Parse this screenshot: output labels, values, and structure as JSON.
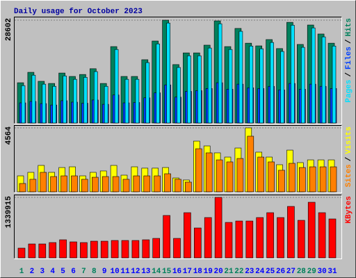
{
  "chart_data": [
    {
      "type": "bar",
      "title": "Daily usage for October 2023",
      "legend_separator": "/",
      "series": [
        {
          "name": "Pages",
          "color": "#00e0ff",
          "values": [
            10400,
            13300,
            10800,
            10200,
            13100,
            12150,
            12700,
            14300,
            10200,
            20450,
            12150,
            12150,
            16800,
            22000,
            27800,
            15450,
            18700,
            18700,
            20850,
            27600,
            20450,
            25500,
            21400,
            20650,
            22400,
            19900,
            27200,
            21050,
            26450,
            23950,
            21400
          ]
        },
        {
          "name": "Files",
          "color": "#0040ff",
          "values": [
            5600,
            6000,
            5400,
            5000,
            6200,
            5800,
            5500,
            6400,
            5200,
            7800,
            5600,
            5700,
            7000,
            8400,
            10600,
            7200,
            8800,
            9000,
            9600,
            11200,
            9400,
            10800,
            9800,
            9600,
            10200,
            9200,
            11000,
            9400,
            10800,
            10200,
            9600
          ]
        },
        {
          "name": "Hits",
          "color": "#00805c",
          "values": [
            11200,
            14100,
            11600,
            11000,
            13900,
            12950,
            13500,
            15100,
            11000,
            21250,
            12950,
            12950,
            17600,
            22800,
            28602,
            16250,
            19500,
            19500,
            21650,
            28400,
            21250,
            26300,
            22200,
            21450,
            23200,
            20700,
            28000,
            21850,
            27250,
            24750,
            22200
          ]
        }
      ],
      "ylim": [
        0,
        28602
      ],
      "yticks": [
        28602
      ]
    },
    {
      "type": "bar",
      "legend_separator": "/",
      "series": [
        {
          "name": "Sites",
          "color": "#ff8000",
          "values": [
            595,
            895,
            1390,
            1090,
            1140,
            1140,
            895,
            1040,
            1090,
            1090,
            895,
            1140,
            1140,
            1140,
            1290,
            895,
            695,
            3075,
            2780,
            2280,
            2135,
            2380,
            3970,
            2480,
            2135,
            1540,
            2035,
            1735,
            1785,
            1785,
            1785
          ]
        },
        {
          "name": "Visits",
          "color": "#ffff00",
          "values": [
            1140,
            1390,
            1885,
            1390,
            1735,
            1785,
            1140,
            1390,
            1490,
            1885,
            1190,
            1785,
            1690,
            1690,
            1735,
            990,
            845,
            3620,
            3275,
            2780,
            2480,
            3125,
            4564,
            2830,
            2480,
            1935,
            2975,
            2085,
            2280,
            2280,
            2280
          ]
        }
      ],
      "ylim": [
        0,
        4564
      ],
      "yticks": [
        4564
      ]
    },
    {
      "type": "bar",
      "series": [
        {
          "name": "KBytes",
          "color": "#ff0000",
          "values": [
            215600,
            308000,
            308000,
            338800,
            400400,
            354200,
            338800,
            369600,
            369600,
            385000,
            385000,
            385000,
            400400,
            431200,
            939400,
            431200,
            1001000,
            662200,
            893200,
            1339915,
            785400,
            816200,
            816200,
            893200,
            1001000,
            893200,
            1139600,
            831600,
            1232000,
            1001000,
            862400
          ]
        }
      ],
      "ylim": [
        0,
        1339915
      ],
      "yticks": [
        1339915
      ],
      "categories": [
        1,
        2,
        3,
        4,
        5,
        6,
        7,
        8,
        9,
        10,
        11,
        12,
        13,
        14,
        15,
        16,
        17,
        18,
        19,
        20,
        21,
        22,
        23,
        24,
        25,
        26,
        27,
        28,
        29,
        30,
        31
      ],
      "label_color": "#0000ff",
      "weekend_color": "#00805c",
      "weekends": [
        1,
        7,
        8,
        14,
        15,
        21,
        22,
        28,
        29
      ]
    }
  ]
}
